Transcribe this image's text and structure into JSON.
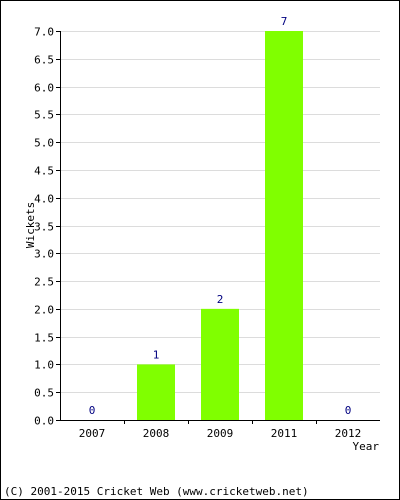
{
  "chart_data": {
    "type": "bar",
    "categories": [
      "2007",
      "2008",
      "2009",
      "2011",
      "2012"
    ],
    "values": [
      0,
      1,
      2,
      7,
      0
    ],
    "value_labels": [
      "0",
      "1",
      "2",
      "7",
      "0"
    ],
    "title": "",
    "xlabel": "Year",
    "ylabel": "Wickets",
    "ylim": [
      0,
      7.0
    ],
    "y_ticks": [
      "0.0",
      "0.5",
      "1.0",
      "1.5",
      "2.0",
      "2.5",
      "3.0",
      "3.5",
      "4.0",
      "4.5",
      "5.0",
      "5.5",
      "6.0",
      "6.5",
      "7.0"
    ],
    "grid": true,
    "legend": "none",
    "bar_color": "#80ff00",
    "label_color": "#000080"
  },
  "footer": {
    "text": "(C) 2001-2015 Cricket Web (www.cricketweb.net)"
  }
}
